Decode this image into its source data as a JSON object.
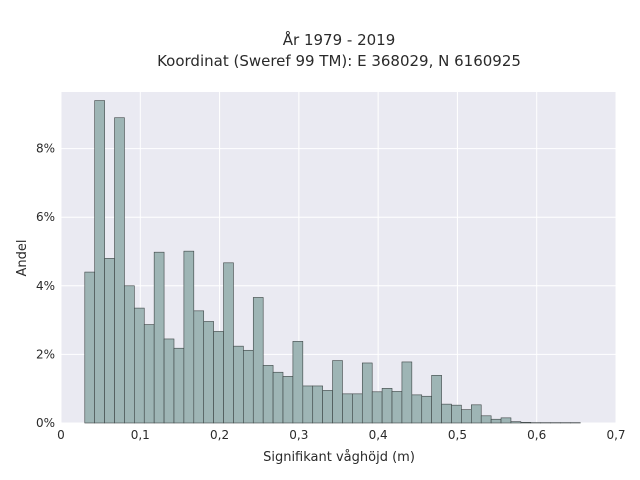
{
  "chart_data": {
    "type": "bar",
    "title": "År 1979 - 2019",
    "subtitle": "Koordinat (Sweref 99 TM): E 368029, N 6160925",
    "xlabel": "Signifikant våghöjd (m)",
    "ylabel": "Andel",
    "xlim": [
      0,
      0.7
    ],
    "ylim": [
      0,
      0.0965
    ],
    "x_ticks": [
      0,
      0.1,
      0.2,
      0.3,
      0.4,
      0.5,
      0.6,
      0.7
    ],
    "x_tick_labels": [
      "0",
      "0,1",
      "0,2",
      "0,3",
      "0,4",
      "0,5",
      "0,6",
      "0,7"
    ],
    "y_ticks": [
      0,
      0.02,
      0.04,
      0.06,
      0.08
    ],
    "y_tick_labels": [
      "0%",
      "2%",
      "4%",
      "6%",
      "8%"
    ],
    "grid": true,
    "bin_start": 0.03,
    "bin_width": 0.0125,
    "values": [
      0.044,
      0.094,
      0.048,
      0.089,
      0.04,
      0.0335,
      0.0287,
      0.0498,
      0.0245,
      0.0218,
      0.0501,
      0.0327,
      0.0296,
      0.0267,
      0.0467,
      0.0224,
      0.0212,
      0.0366,
      0.0168,
      0.0148,
      0.0136,
      0.0238,
      0.0108,
      0.0108,
      0.0095,
      0.0182,
      0.0085,
      0.0085,
      0.0175,
      0.0091,
      0.0101,
      0.0092,
      0.0178,
      0.0082,
      0.0078,
      0.0139,
      0.0055,
      0.0052,
      0.0039,
      0.0053,
      0.0021,
      0.0011,
      0.0015,
      0.0004,
      0.0002,
      0.0001,
      0.0001,
      0.0001,
      0.0001,
      0.0001
    ],
    "colors": {
      "plot_background": "#eaeaf2",
      "bar_fill": "#9eb5b5",
      "bar_edge": "#3c4444",
      "grid": "#ffffff"
    }
  }
}
